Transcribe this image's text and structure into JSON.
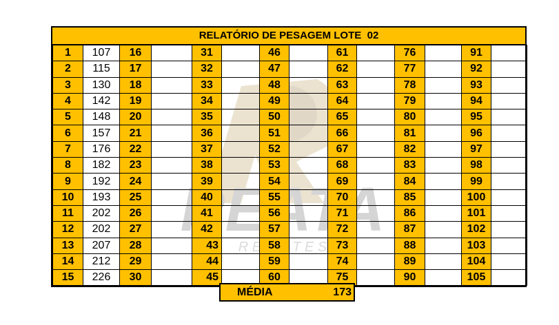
{
  "title": "RELATÓRIO DE PESAGEM LOTE  02",
  "watermark": {
    "brand": "REATA",
    "sub": "R E M A T E S"
  },
  "weights": [
    "107",
    "115",
    "130",
    "142",
    "148",
    "157",
    "176",
    "182",
    "192",
    "193",
    "202",
    "202",
    "207",
    "212",
    "226"
  ],
  "columns": 7,
  "rows": 15,
  "summary": {
    "label": "MÉDIA",
    "value": "173"
  },
  "colors": {
    "accent": "#ffc000"
  }
}
